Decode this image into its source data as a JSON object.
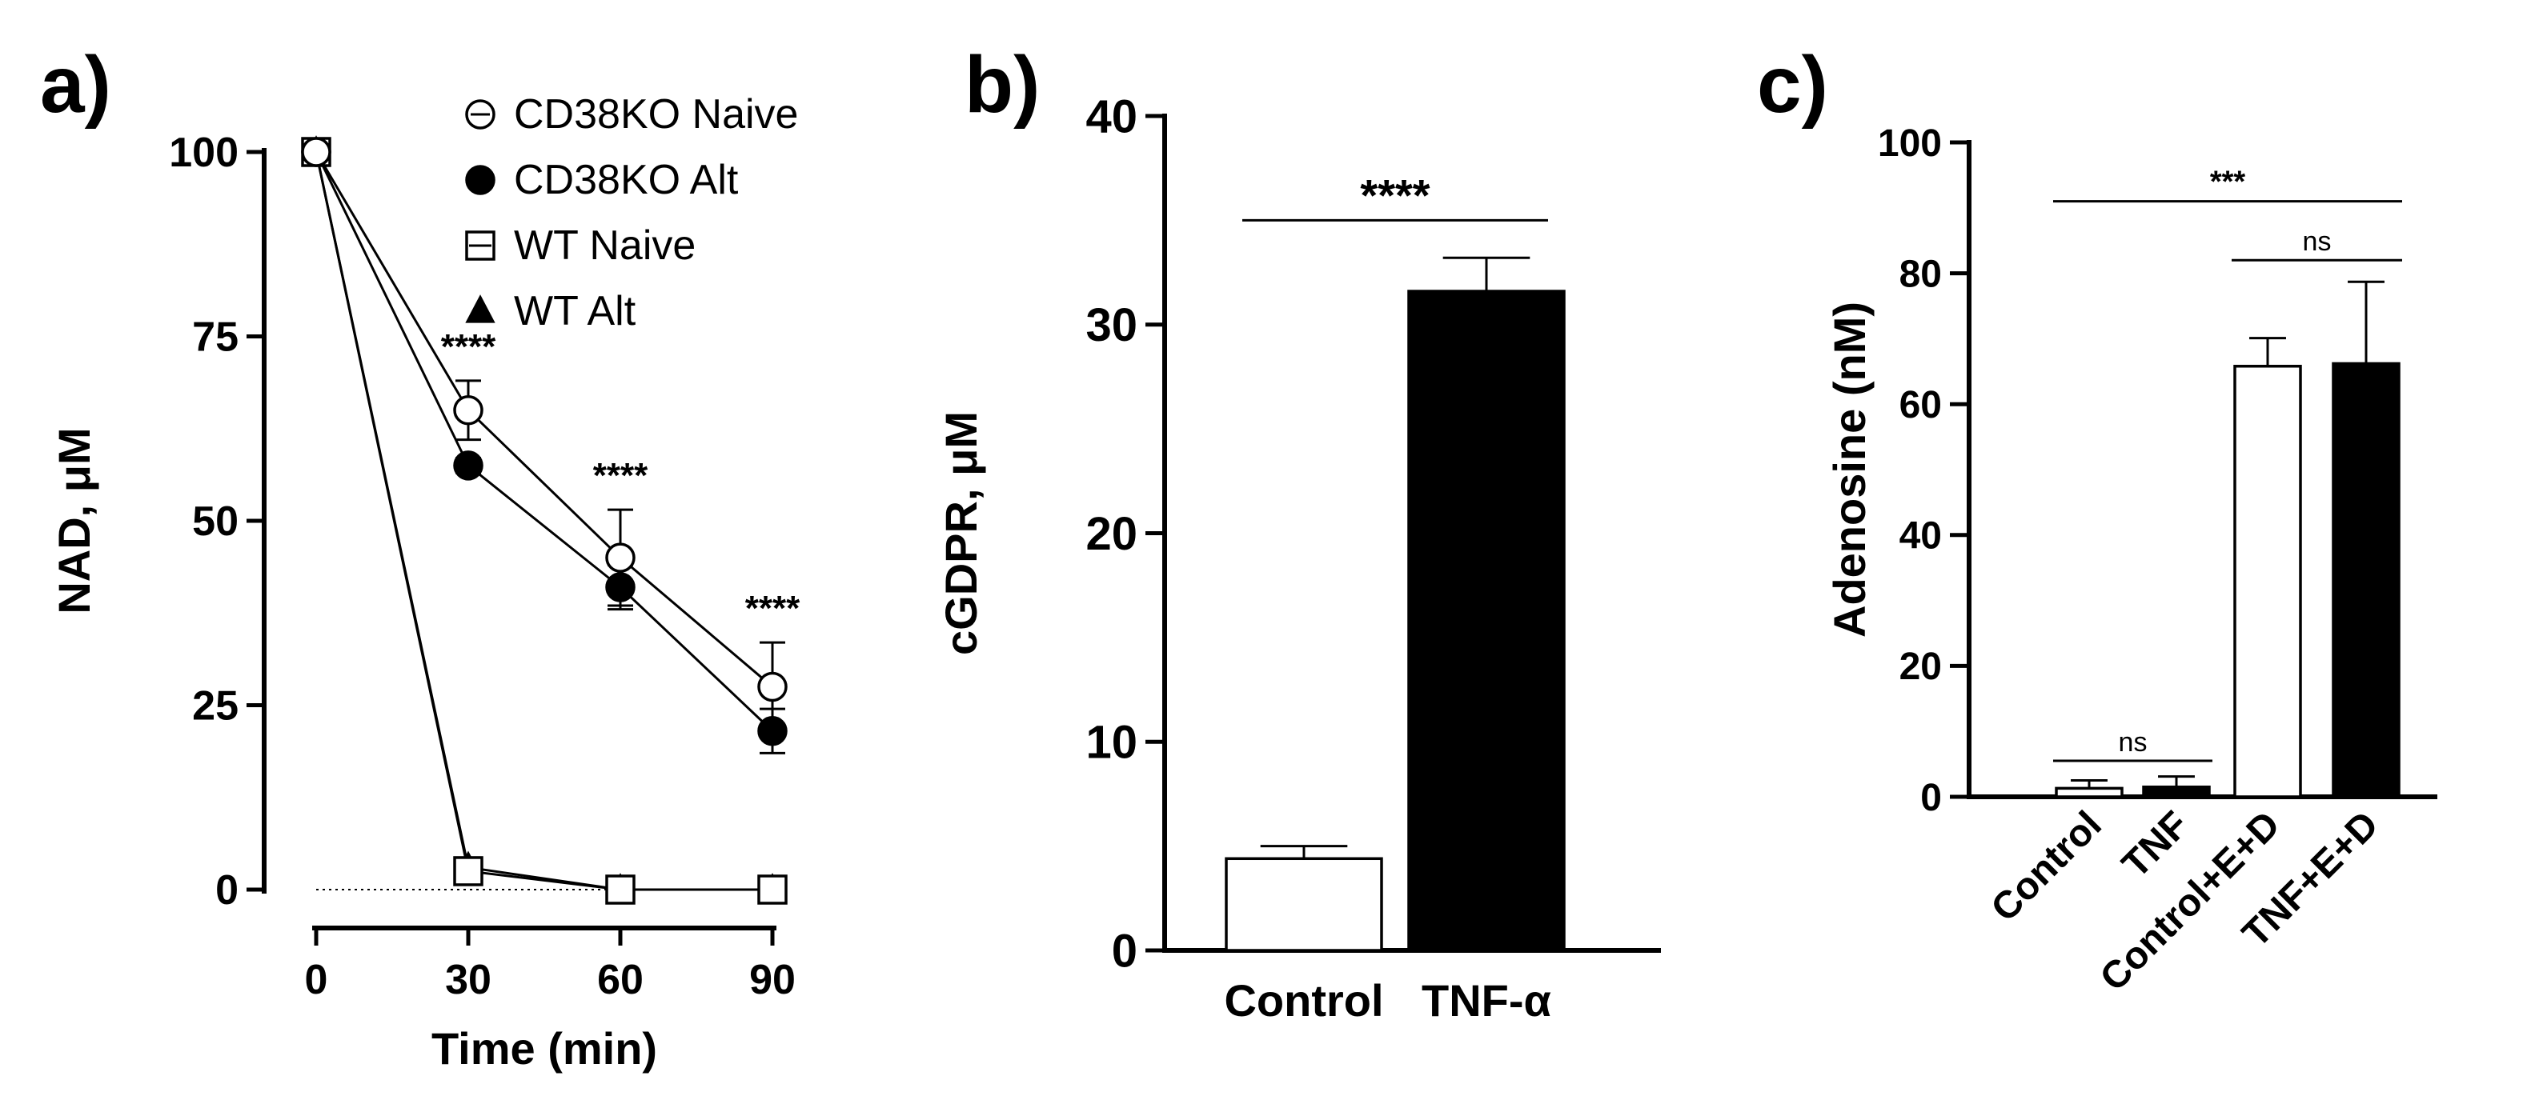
{
  "panels": {
    "a": {
      "label": "a)"
    },
    "b": {
      "label": "b)"
    },
    "c": {
      "label": "c)"
    }
  },
  "chart_data": [
    {
      "panel": "a",
      "type": "line",
      "title": "",
      "xlabel": "Time (min)",
      "ylabel": "NAD, μM",
      "x": [
        0,
        30,
        60,
        90
      ],
      "xticks": [
        0,
        30,
        60,
        90
      ],
      "xtick_labels": [
        "0",
        "30",
        "60",
        "90"
      ],
      "yticks": [
        0,
        25,
        50,
        75,
        100
      ],
      "ytick_labels": [
        "0",
        "25",
        "50",
        "75",
        "100"
      ],
      "xlim": [
        0,
        90
      ],
      "ylim": [
        0,
        100
      ],
      "grid": false,
      "legend": "top-right",
      "series": [
        {
          "name": "CD38KO Naive",
          "marker": "open-circle",
          "values": [
            100,
            65,
            45,
            27.5
          ],
          "errors": [
            0,
            4,
            6.5,
            6
          ]
        },
        {
          "name": "CD38KO Alt",
          "marker": "filled-circle",
          "values": [
            100,
            57.5,
            41,
            21.5
          ],
          "errors": [
            0,
            1,
            3,
            3
          ]
        },
        {
          "name": "WT Naive",
          "marker": "open-square",
          "values": [
            100,
            2.5,
            0,
            0
          ],
          "errors": [
            0,
            0,
            0,
            0
          ]
        },
        {
          "name": "WT Alt",
          "marker": "filled-triangle",
          "values": [
            100,
            3,
            0,
            0
          ],
          "errors": [
            0,
            0,
            0,
            0
          ]
        }
      ],
      "annotations": [
        {
          "text": "****",
          "x": 30
        },
        {
          "text": "****",
          "x": 60
        },
        {
          "text": "****",
          "x": 90
        }
      ]
    },
    {
      "panel": "b",
      "type": "bar",
      "title": "",
      "xlabel": "",
      "ylabel": "cGDPR, μM",
      "categories": [
        "Control",
        "TNF-α"
      ],
      "values": [
        4.4,
        31.6
      ],
      "errors": [
        0.6,
        1.6
      ],
      "fills": [
        "#ffffff",
        "#000000"
      ],
      "yticks": [
        0,
        10,
        20,
        30,
        40
      ],
      "ytick_labels": [
        "0",
        "10",
        "20",
        "30",
        "40"
      ],
      "ylim": [
        0,
        40
      ],
      "grid": false,
      "annotations": [
        {
          "text": "****",
          "from": 0,
          "to": 1,
          "y": 35
        }
      ]
    },
    {
      "panel": "c",
      "type": "bar",
      "title": "",
      "xlabel": "",
      "ylabel": "Adenosine (nM)",
      "categories": [
        "Control",
        "TNF",
        "Control+E+D",
        "TNF+E+D"
      ],
      "values": [
        1.3,
        1.5,
        65.8,
        66.2
      ],
      "errors": [
        1.2,
        1.6,
        4.3,
        12.5
      ],
      "fills": [
        "#ffffff",
        "#000000",
        "#ffffff",
        "#000000"
      ],
      "yticks": [
        0,
        20,
        40,
        60,
        80,
        100
      ],
      "ytick_labels": [
        "0",
        "20",
        "40",
        "60",
        "80",
        "100"
      ],
      "ylim": [
        0,
        100
      ],
      "grid": false,
      "annotations": [
        {
          "text": "ns",
          "from": 0,
          "to": 1,
          "y": 5.5
        },
        {
          "text": "***",
          "from": 0,
          "to": 3,
          "y": 91
        },
        {
          "text": "ns",
          "from": 2,
          "to": 3,
          "y": 82
        }
      ]
    }
  ]
}
